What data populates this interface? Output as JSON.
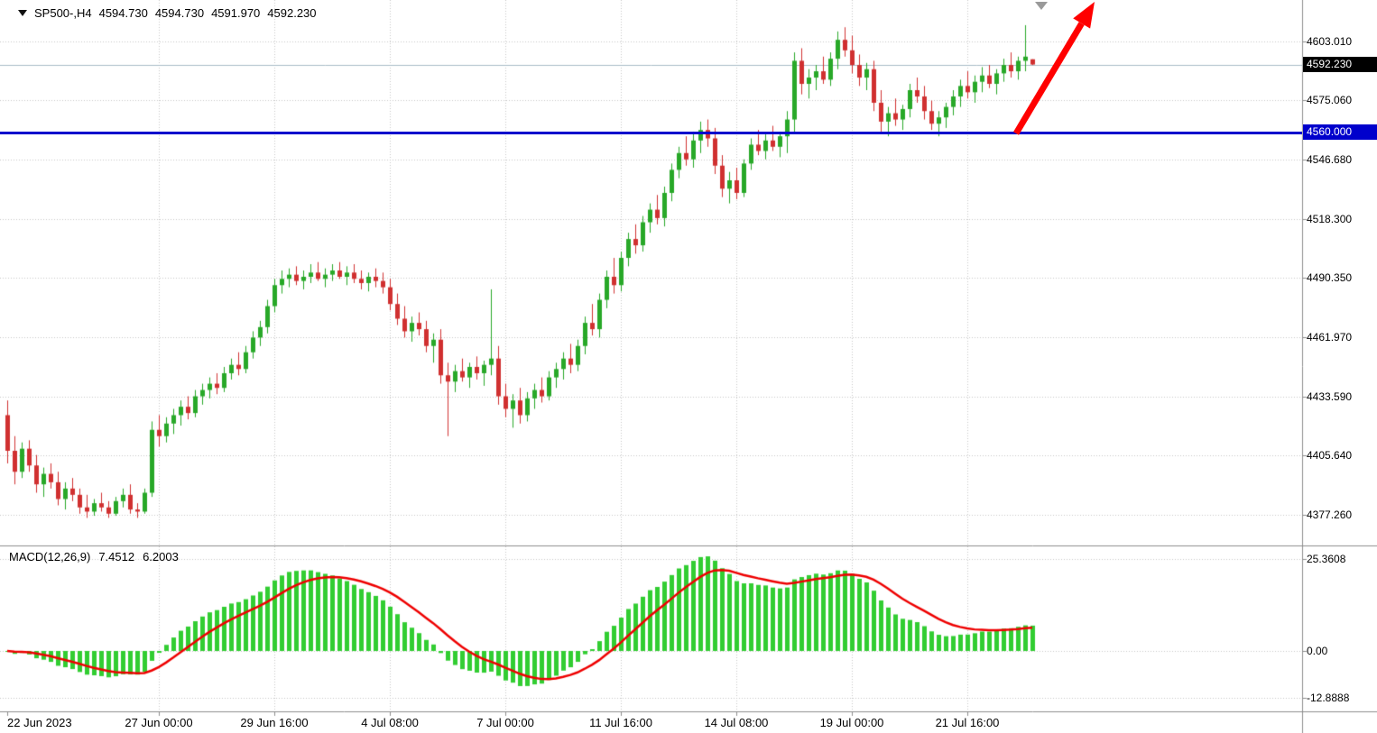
{
  "header": {
    "symbol_timeframe": "SP500-,H4",
    "open": "4594.730",
    "high": "4594.730",
    "low": "4591.970",
    "close": "4592.230"
  },
  "indicator": {
    "name": "MACD(12,26,9)",
    "macd_value": "7.4512",
    "signal_value": "6.2003"
  },
  "price_axis": {
    "ticks": [
      "4603.010",
      "4575.060",
      "4546.680",
      "4518.300",
      "4490.350",
      "4461.970",
      "4433.590",
      "4405.640",
      "4377.260"
    ],
    "current_price_label": "4592.230",
    "hline_label": "4560.000"
  },
  "macd_axis": {
    "ticks": [
      "25.3608",
      "0.00",
      "-12.8888"
    ],
    "values": [
      25.3608,
      0,
      -12.8888
    ]
  },
  "time_axis": [
    {
      "label": "22 Jun 2023",
      "bar": 0,
      "align": "left",
      "grid": false
    },
    {
      "label": "27 Jun 00:00",
      "bar": 21
    },
    {
      "label": "29 Jun 16:00",
      "bar": 37
    },
    {
      "label": "4 Jul 08:00",
      "bar": 53
    },
    {
      "label": "7 Jul 00:00",
      "bar": 69
    },
    {
      "label": "11 Jul 16:00",
      "bar": 85
    },
    {
      "label": "14 Jul 08:00",
      "bar": 101
    },
    {
      "label": "19 Jul 00:00",
      "bar": 117
    },
    {
      "label": "21 Jul 16:00",
      "bar": 133
    }
  ],
  "colors": {
    "bull": "#28a828",
    "bear": "#d03030",
    "macd_hist": "#32cd32",
    "macd_signal": "#ee0000",
    "hline": "#0000cc",
    "arrow": "#ff0000",
    "grid": "#c6c6c6",
    "separator": "#8c8c8c",
    "current_line": "#a9bcc7"
  },
  "markers": {
    "arrow": {
      "from": [
        1126,
        148
      ],
      "to": [
        1213,
        2
      ]
    }
  },
  "chart_data": {
    "type": "candlestick",
    "title": "SP500-,H4",
    "symbol": "SP500-",
    "timeframe": "H4",
    "ylim": [
      4365.0,
      4623.0
    ],
    "macd_ylim": [
      -16.6,
      28.5
    ],
    "hline": 4560.0,
    "current_price": 4592.23,
    "indicator": {
      "name": "MACD",
      "params": [
        12,
        26,
        9
      ],
      "macd_value": 7.4512,
      "signal_value": 6.2003
    },
    "candles": [
      [
        4425,
        4432,
        4402,
        4408
      ],
      [
        4408,
        4415,
        4392,
        4398
      ],
      [
        4398,
        4412,
        4395,
        4409
      ],
      [
        4409,
        4413,
        4398,
        4401
      ],
      [
        4401,
        4406,
        4388,
        4392
      ],
      [
        4392,
        4400,
        4386,
        4397
      ],
      [
        4397,
        4402,
        4390,
        4393
      ],
      [
        4393,
        4398,
        4382,
        4385
      ],
      [
        4385,
        4393,
        4380,
        4390
      ],
      [
        4390,
        4395,
        4384,
        4387
      ],
      [
        4387,
        4390,
        4378,
        4381
      ],
      [
        4381,
        4387,
        4376,
        4379
      ],
      [
        4379,
        4385,
        4377,
        4383
      ],
      [
        4383,
        4388,
        4379,
        4381
      ],
      [
        4381,
        4384,
        4376,
        4378
      ],
      [
        4378,
        4386,
        4377,
        4384
      ],
      [
        4384,
        4390,
        4381,
        4387
      ],
      [
        4387,
        4392,
        4378,
        4380
      ],
      [
        4380,
        4383,
        4376,
        4379
      ],
      [
        4379,
        4390,
        4378,
        4388
      ],
      [
        4388,
        4422,
        4386,
        4418
      ],
      [
        4418,
        4425,
        4410,
        4415
      ],
      [
        4415,
        4424,
        4412,
        4421
      ],
      [
        4421,
        4428,
        4416,
        4425
      ],
      [
        4425,
        4432,
        4420,
        4429
      ],
      [
        4429,
        4434,
        4423,
        4426
      ],
      [
        4426,
        4437,
        4424,
        4434
      ],
      [
        4434,
        4440,
        4430,
        4437
      ],
      [
        4437,
        4443,
        4433,
        4440
      ],
      [
        4440,
        4445,
        4435,
        4438
      ],
      [
        4438,
        4448,
        4436,
        4445
      ],
      [
        4445,
        4452,
        4442,
        4449
      ],
      [
        4449,
        4455,
        4444,
        4447
      ],
      [
        4447,
        4458,
        4445,
        4455
      ],
      [
        4455,
        4465,
        4452,
        4462
      ],
      [
        4462,
        4470,
        4458,
        4467
      ],
      [
        4467,
        4480,
        4464,
        4477
      ],
      [
        4477,
        4490,
        4474,
        4487
      ],
      [
        4487,
        4494,
        4483,
        4490
      ],
      [
        4490,
        4495,
        4486,
        4492
      ],
      [
        4492,
        4496,
        4487,
        4489
      ],
      [
        4489,
        4494,
        4485,
        4491
      ],
      [
        4491,
        4497,
        4488,
        4493
      ],
      [
        4493,
        4498,
        4489,
        4490
      ],
      [
        4490,
        4495,
        4486,
        4492
      ],
      [
        4492,
        4497,
        4489,
        4494
      ],
      [
        4494,
        4498,
        4490,
        4491
      ],
      [
        4491,
        4496,
        4487,
        4493
      ],
      [
        4493,
        4497,
        4488,
        4490
      ],
      [
        4490,
        4494,
        4485,
        4488
      ],
      [
        4488,
        4493,
        4484,
        4491
      ],
      [
        4491,
        4495,
        4486,
        4489
      ],
      [
        4489,
        4493,
        4483,
        4486
      ],
      [
        4486,
        4490,
        4475,
        4478
      ],
      [
        4478,
        4483,
        4468,
        4471
      ],
      [
        4471,
        4477,
        4462,
        4465
      ],
      [
        4465,
        4472,
        4460,
        4469
      ],
      [
        4469,
        4474,
        4463,
        4466
      ],
      [
        4466,
        4470,
        4455,
        4458
      ],
      [
        4458,
        4464,
        4450,
        4461
      ],
      [
        4461,
        4466,
        4440,
        4444
      ],
      [
        4444,
        4450,
        4415,
        4441
      ],
      [
        4441,
        4449,
        4436,
        4446
      ],
      [
        4446,
        4452,
        4441,
        4443
      ],
      [
        4443,
        4450,
        4438,
        4448
      ],
      [
        4448,
        4453,
        4442,
        4445
      ],
      [
        4445,
        4451,
        4439,
        4449
      ],
      [
        4449,
        4485,
        4444,
        4452
      ],
      [
        4452,
        4458,
        4430,
        4434
      ],
      [
        4434,
        4440,
        4424,
        4428
      ],
      [
        4428,
        4435,
        4419,
        4432
      ],
      [
        4432,
        4438,
        4421,
        4425
      ],
      [
        4425,
        4436,
        4422,
        4433
      ],
      [
        4433,
        4440,
        4428,
        4437
      ],
      [
        4437,
        4443,
        4431,
        4434
      ],
      [
        4434,
        4446,
        4432,
        4443
      ],
      [
        4443,
        4450,
        4438,
        4447
      ],
      [
        4447,
        4455,
        4442,
        4452
      ],
      [
        4452,
        4459,
        4445,
        4449
      ],
      [
        4449,
        4461,
        4446,
        4458
      ],
      [
        4458,
        4472,
        4454,
        4469
      ],
      [
        4469,
        4478,
        4463,
        4466
      ],
      [
        4466,
        4483,
        4462,
        4480
      ],
      [
        4480,
        4494,
        4476,
        4491
      ],
      [
        4491,
        4500,
        4483,
        4487
      ],
      [
        4487,
        4503,
        4484,
        4500
      ],
      [
        4500,
        4512,
        4496,
        4509
      ],
      [
        4509,
        4516,
        4502,
        4506
      ],
      [
        4506,
        4520,
        4503,
        4517
      ],
      [
        4517,
        4526,
        4512,
        4523
      ],
      [
        4523,
        4530,
        4516,
        4519
      ],
      [
        4519,
        4534,
        4515,
        4531
      ],
      [
        4531,
        4545,
        4527,
        4542
      ],
      [
        4542,
        4553,
        4538,
        4550
      ],
      [
        4550,
        4558,
        4544,
        4547
      ],
      [
        4547,
        4560,
        4543,
        4556
      ],
      [
        4556,
        4565,
        4550,
        4561
      ],
      [
        4561,
        4566,
        4553,
        4557
      ],
      [
        4557,
        4562,
        4540,
        4544
      ],
      [
        4544,
        4549,
        4529,
        4533
      ],
      [
        4533,
        4541,
        4526,
        4537
      ],
      [
        4537,
        4543,
        4528,
        4531
      ],
      [
        4531,
        4547,
        4529,
        4545
      ],
      [
        4545,
        4557,
        4542,
        4554
      ],
      [
        4554,
        4561,
        4549,
        4551
      ],
      [
        4551,
        4559,
        4547,
        4556
      ],
      [
        4556,
        4563,
        4551,
        4553
      ],
      [
        4553,
        4560,
        4548,
        4558
      ],
      [
        4558,
        4570,
        4550,
        4566
      ],
      [
        4566,
        4598,
        4560,
        4594
      ],
      [
        4594,
        4600,
        4578,
        4583
      ],
      [
        4583,
        4590,
        4576,
        4586
      ],
      [
        4586,
        4592,
        4580,
        4589
      ],
      [
        4589,
        4596,
        4583,
        4585
      ],
      [
        4585,
        4598,
        4582,
        4595
      ],
      [
        4595,
        4608,
        4590,
        4604
      ],
      [
        4604,
        4610,
        4596,
        4599
      ],
      [
        4599,
        4606,
        4588,
        4592
      ],
      [
        4592,
        4597,
        4582,
        4586
      ],
      [
        4586,
        4593,
        4580,
        4590
      ],
      [
        4590,
        4594,
        4570,
        4574
      ],
      [
        4574,
        4580,
        4560,
        4565
      ],
      [
        4565,
        4572,
        4558,
        4569
      ],
      [
        4569,
        4576,
        4563,
        4566
      ],
      [
        4566,
        4573,
        4561,
        4571
      ],
      [
        4571,
        4583,
        4567,
        4580
      ],
      [
        4580,
        4586,
        4574,
        4577
      ],
      [
        4577,
        4582,
        4566,
        4570
      ],
      [
        4570,
        4575,
        4561,
        4564
      ],
      [
        4564,
        4570,
        4558,
        4567
      ],
      [
        4567,
        4574,
        4562,
        4572
      ],
      [
        4572,
        4580,
        4568,
        4577
      ],
      [
        4577,
        4585,
        4572,
        4582
      ],
      [
        4582,
        4589,
        4576,
        4579
      ],
      [
        4579,
        4587,
        4574,
        4584
      ],
      [
        4584,
        4591,
        4579,
        4587
      ],
      [
        4587,
        4592,
        4581,
        4583
      ],
      [
        4583,
        4590,
        4578,
        4588
      ],
      [
        4588,
        4595,
        4584,
        4592
      ],
      [
        4592,
        4598,
        4586,
        4589
      ],
      [
        4589,
        4596,
        4585,
        4594
      ],
      [
        4594,
        4611,
        4589,
        4596
      ],
      [
        4594.73,
        4594.73,
        4591.97,
        4592.23
      ]
    ]
  }
}
